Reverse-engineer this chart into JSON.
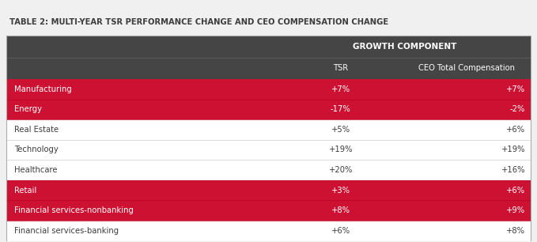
{
  "title": "TABLE 2: MULTI-YEAR TSR PERFORMANCE CHANGE AND CEO COMPENSATION CHANGE",
  "header_group": "GROWTH COMPONENT",
  "col_headers": [
    "",
    "TSR",
    "CEO Total Compensation"
  ],
  "rows": [
    {
      "label": "Manufacturing",
      "tsr": "+7%",
      "ceo": "+7%",
      "highlight": true
    },
    {
      "label": "Energy",
      "tsr": "-17%",
      "ceo": "-2%",
      "highlight": true
    },
    {
      "label": "Real Estate",
      "tsr": "+5%",
      "ceo": "+6%",
      "highlight": false
    },
    {
      "label": "Technology",
      "tsr": "+19%",
      "ceo": "+19%",
      "highlight": false
    },
    {
      "label": "Healthcare",
      "tsr": "+20%",
      "ceo": "+16%",
      "highlight": false
    },
    {
      "label": "Retail",
      "tsr": "+3%",
      "ceo": "+6%",
      "highlight": true
    },
    {
      "label": "Financial services-nonbanking",
      "tsr": "+8%",
      "ceo": "+9%",
      "highlight": true
    },
    {
      "label": "Financial services-banking",
      "tsr": "+6%",
      "ceo": "+8%",
      "highlight": false
    }
  ],
  "title_color": "#3d3d3d",
  "header_bg": "#454545",
  "header_text_color": "#ffffff",
  "highlight_color": "#cc1133",
  "normal_bg": "#ffffff",
  "normal_text_color": "#3d3d3d",
  "highlight_text_color": "#ffffff",
  "divider_color": "#cccccc",
  "outer_border_color": "#aaaaaa",
  "fig_bg": "#f0f0f0"
}
